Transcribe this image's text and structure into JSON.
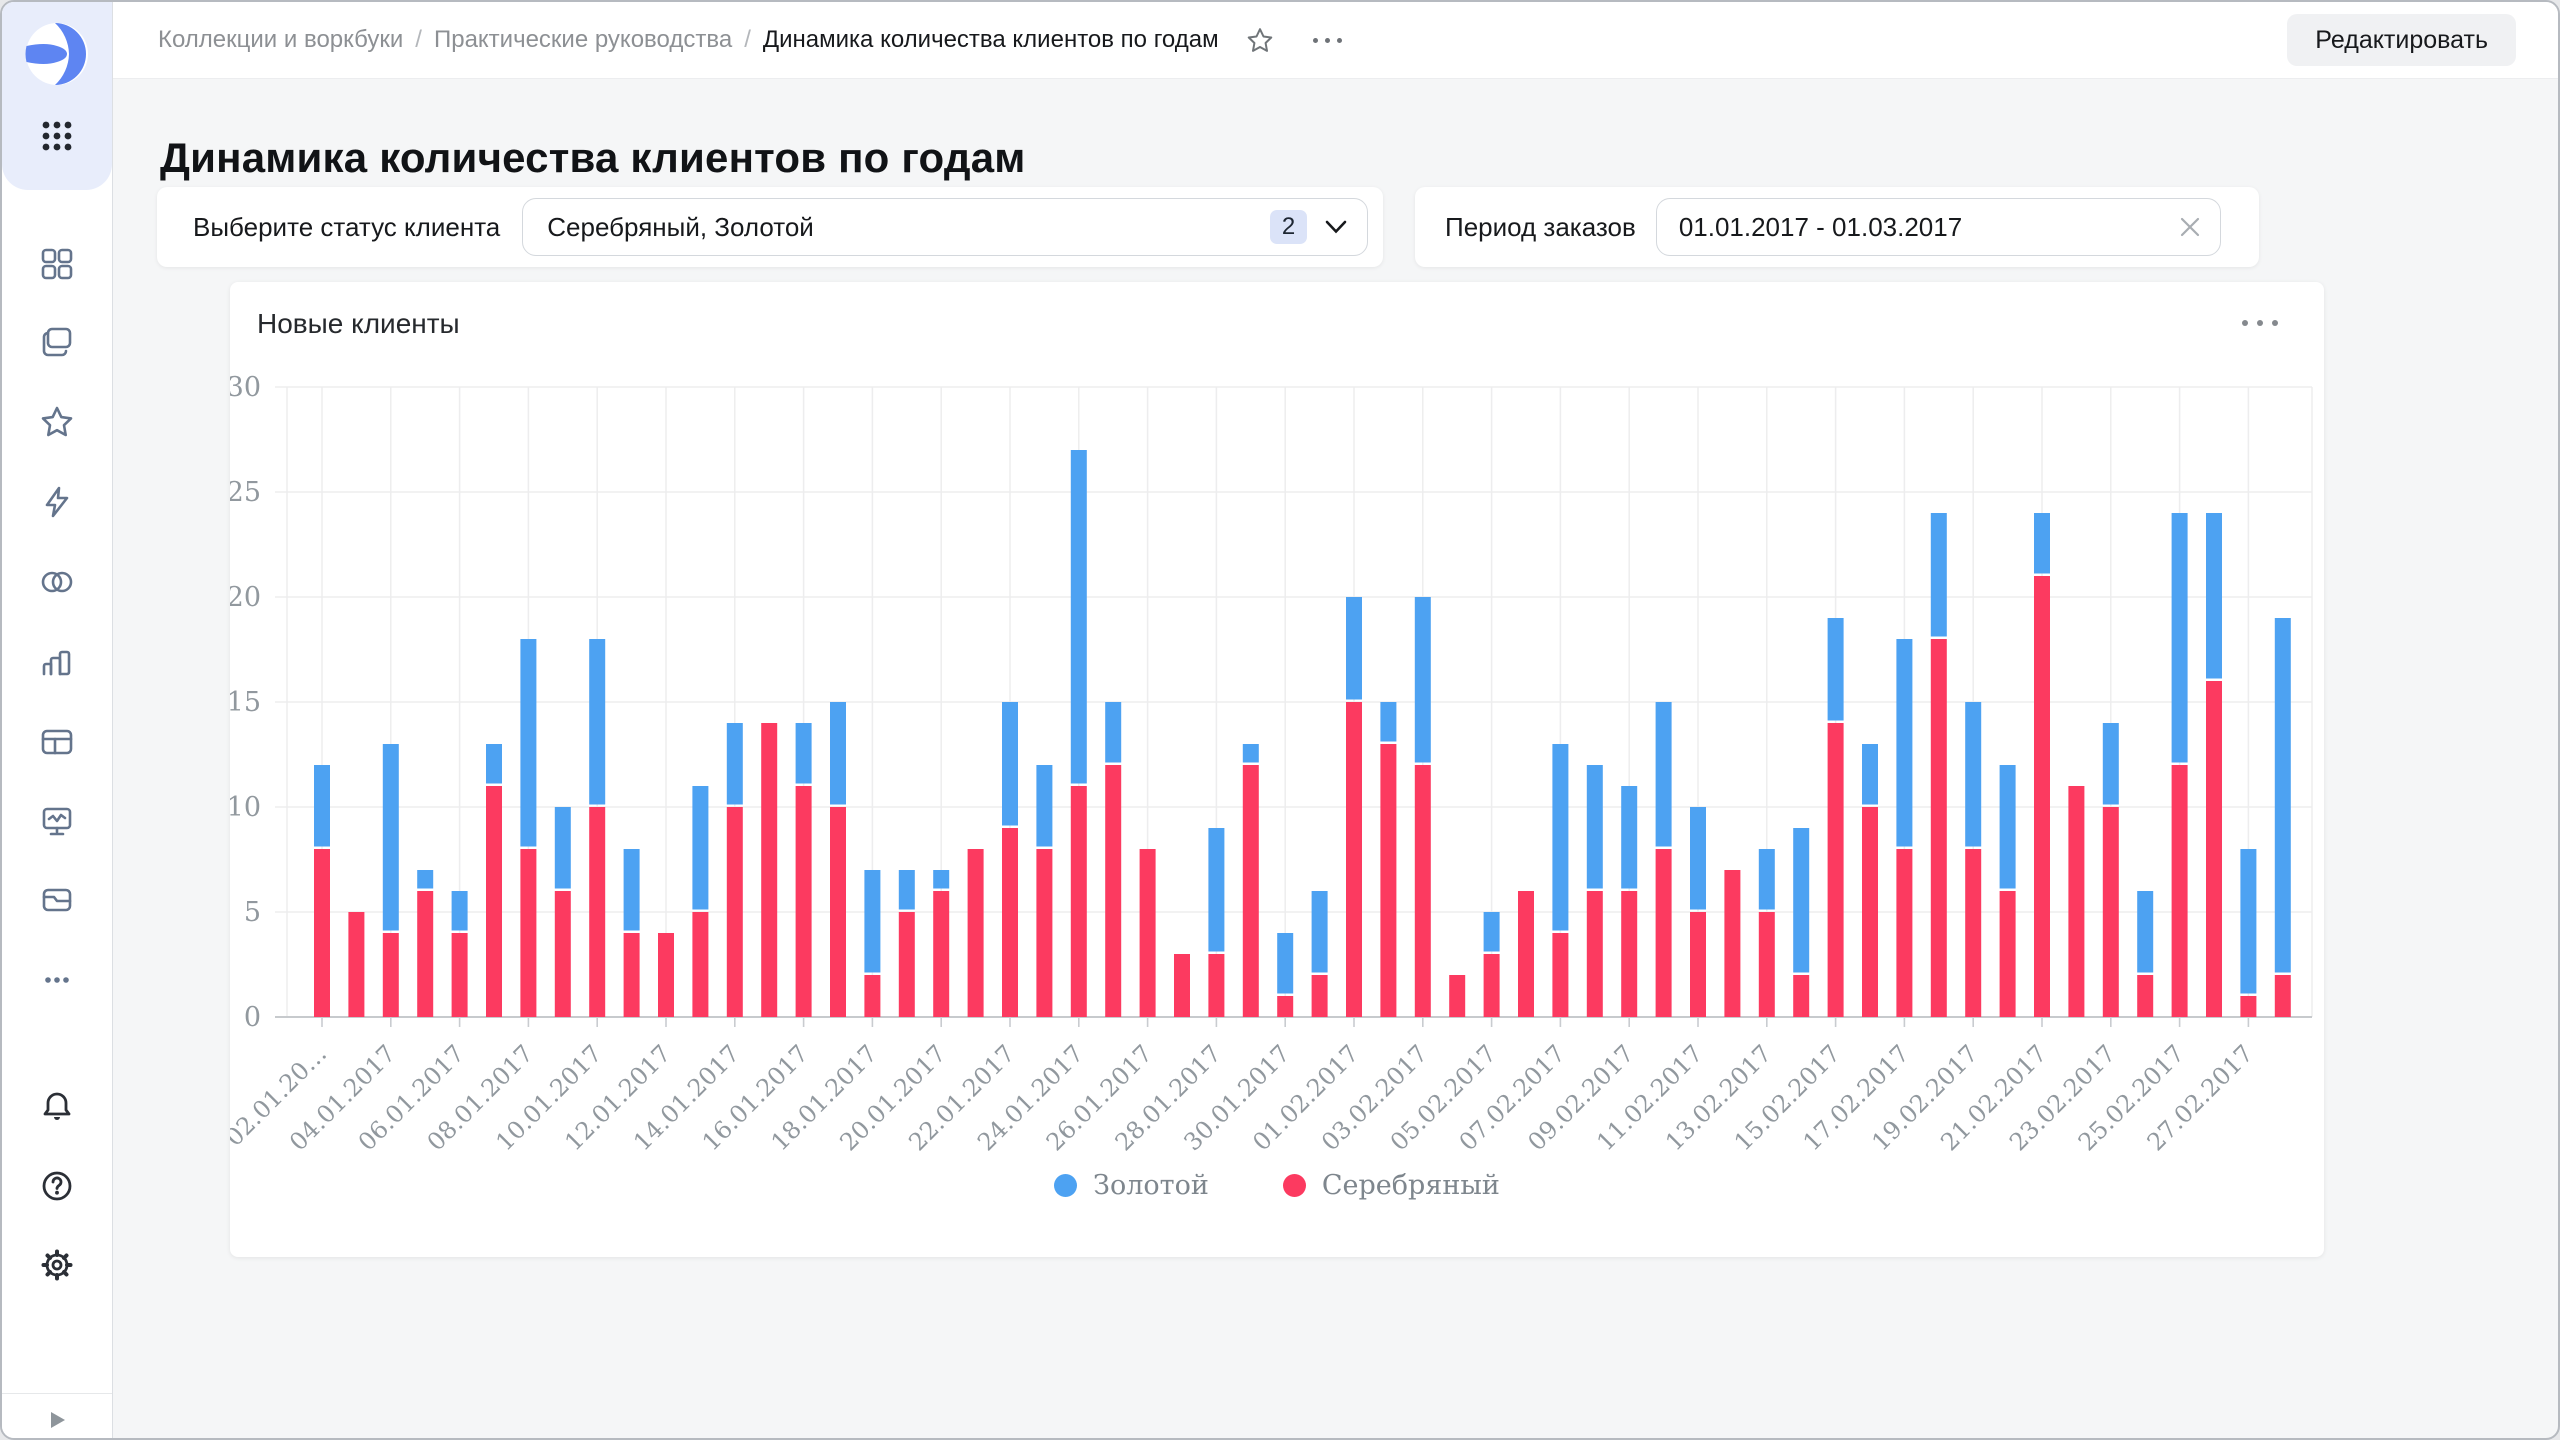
{
  "breadcrumb": {
    "items": [
      "Коллекции и воркбуки",
      "Практические руководства",
      "Динамика количества клиентов по годам"
    ],
    "separator": "/"
  },
  "header": {
    "edit_label": "Редактировать"
  },
  "page": {
    "title": "Динамика количества клиентов по годам"
  },
  "filters": {
    "status": {
      "label": "Выберите статус клиента",
      "value": "Серебряный, Золотой",
      "badge": "2"
    },
    "period": {
      "label": "Период заказов",
      "value": "01.01.2017 - 01.03.2017"
    }
  },
  "chart_card": {
    "title": "Новые клиенты"
  },
  "sidebar": {
    "icons": [
      "datalens-logo",
      "apps-grid",
      "collections",
      "workbooks",
      "favorites",
      "connections",
      "datasets",
      "charts",
      "tables",
      "monitoring",
      "storage",
      "more",
      "notifications",
      "help",
      "settings",
      "expand"
    ]
  },
  "colors": {
    "gold_blue": "#4da2f2",
    "silver_red": "#fc3a60",
    "sidebar_icon": "#64748c",
    "logo_blue": "#5e85f2",
    "sidebar_top_bg": "#e8edfb"
  },
  "chart_data": {
    "type": "bar",
    "stacked": true,
    "title": "Новые клиенты",
    "xlabel": "",
    "ylabel": "",
    "ylim": [
      0,
      30
    ],
    "yticks": [
      0,
      5,
      10,
      15,
      20,
      25,
      30
    ],
    "grid": true,
    "legend_position": "bottom",
    "x": [
      "02.01.2017",
      "03.01.2017",
      "04.01.2017",
      "05.01.2017",
      "06.01.2017",
      "07.01.2017",
      "08.01.2017",
      "09.01.2017",
      "10.01.2017",
      "11.01.2017",
      "12.01.2017",
      "13.01.2017",
      "14.01.2017",
      "15.01.2017",
      "16.01.2017",
      "17.01.2017",
      "18.01.2017",
      "19.01.2017",
      "20.01.2017",
      "21.01.2017",
      "22.01.2017",
      "23.01.2017",
      "24.01.2017",
      "25.01.2017",
      "26.01.2017",
      "27.01.2017",
      "28.01.2017",
      "29.01.2017",
      "30.01.2017",
      "31.01.2017",
      "01.02.2017",
      "02.02.2017",
      "03.02.2017",
      "04.02.2017",
      "05.02.2017",
      "06.02.2017",
      "07.02.2017",
      "08.02.2017",
      "09.02.2017",
      "10.02.2017",
      "11.02.2017",
      "12.02.2017",
      "13.02.2017",
      "14.02.2017",
      "15.02.2017",
      "16.02.2017",
      "17.02.2017",
      "18.02.2017",
      "19.02.2017",
      "20.02.2017",
      "21.02.2017",
      "22.02.2017",
      "23.02.2017",
      "24.02.2017",
      "25.02.2017",
      "26.02.2017",
      "27.02.2017",
      "28.02.2017"
    ],
    "x_tick_labels": [
      "02.01.20…",
      "04.01.2017",
      "06.01.2017",
      "08.01.2017",
      "10.01.2017",
      "12.01.2017",
      "14.01.2017",
      "16.01.2017",
      "18.01.2017",
      "20.01.2017",
      "22.01.2017",
      "24.01.2017",
      "26.01.2017",
      "28.01.2017",
      "30.01.2017",
      "01.02.2017",
      "03.02.2017",
      "05.02.2017",
      "07.02.2017",
      "09.02.2017",
      "11.02.2017",
      "13.02.2017",
      "15.02.2017",
      "17.02.2017",
      "19.02.2017",
      "21.02.2017",
      "23.02.2017",
      "25.02.2017",
      "27.02.2017"
    ],
    "series": [
      {
        "name": "Золотой",
        "color": "#4da2f2",
        "values": [
          4,
          0,
          9,
          1,
          2,
          2,
          10,
          4,
          8,
          4,
          0,
          6,
          4,
          0,
          3,
          5,
          5,
          2,
          1,
          0,
          6,
          4,
          16,
          3,
          0,
          0,
          6,
          1,
          3,
          4,
          5,
          2,
          8,
          0,
          2,
          0,
          9,
          6,
          5,
          7,
          5,
          0,
          3,
          7,
          5,
          3,
          10,
          6,
          7,
          6,
          3,
          0,
          4,
          4,
          12,
          8,
          7,
          17
        ]
      },
      {
        "name": "Серебряный",
        "color": "#fc3a60",
        "values": [
          8,
          5,
          4,
          6,
          4,
          11,
          8,
          6,
          10,
          4,
          4,
          5,
          10,
          14,
          11,
          10,
          2,
          5,
          6,
          8,
          9,
          8,
          11,
          12,
          8,
          3,
          3,
          12,
          1,
          2,
          15,
          13,
          12,
          2,
          3,
          6,
          4,
          6,
          6,
          8,
          5,
          7,
          5,
          2,
          14,
          10,
          8,
          18,
          8,
          6,
          21,
          11,
          10,
          2,
          12,
          16,
          1,
          2
        ]
      }
    ]
  }
}
